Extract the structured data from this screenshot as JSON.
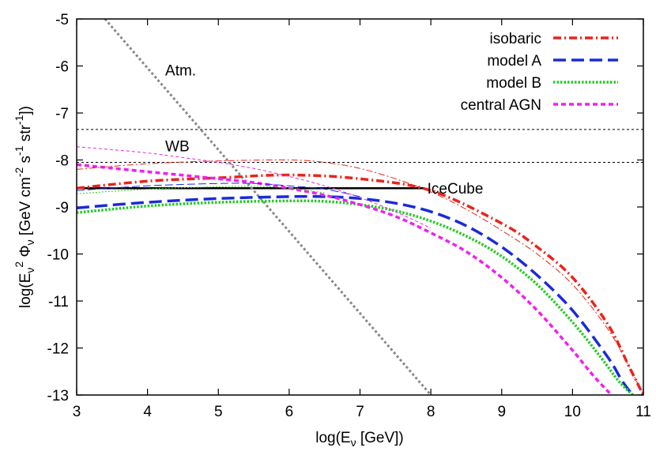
{
  "chart_data": {
    "type": "line",
    "title": "",
    "xlabel": "log(E",
    "xlabel_sub": "ν",
    "xlabel_tail": " [GeV])",
    "ylabel_parts": {
      "a": "log(E",
      "sub1": "ν",
      "sup1": "2",
      "b": " Φ",
      "sub2": "ν",
      "c": " [GeV cm",
      "sup2": "-2",
      "d": " s",
      "sup3": "-1",
      "e": " str",
      "sup4": "-1",
      "f": "])"
    },
    "xlim": [
      3,
      11
    ],
    "ylim": [
      -13,
      -5
    ],
    "xticks": [
      "3",
      "4",
      "5",
      "6",
      "7",
      "8",
      "9",
      "10",
      "11"
    ],
    "yticks": [
      "-5",
      "-6",
      "-7",
      "-8",
      "-9",
      "-10",
      "-11",
      "-12",
      "-13"
    ],
    "legend_position": "top-right",
    "legend": [
      {
        "name": "isobaric",
        "color": "#e8241c",
        "style": "dash-dot"
      },
      {
        "name": "model A",
        "color": "#1a2bd8",
        "style": "long-dash"
      },
      {
        "name": "model B",
        "color": "#22cc22",
        "style": "dotted"
      },
      {
        "name": "central AGN",
        "color": "#ee22ee",
        "style": "short-dash"
      }
    ],
    "series": [
      {
        "name": "isobaric",
        "color": "#e8241c",
        "width": 3.5,
        "x": [
          3,
          4,
          5,
          6,
          7,
          8,
          9,
          9.5,
          10,
          10.5,
          10.8,
          11
        ],
        "y": [
          -8.6,
          -8.45,
          -8.38,
          -8.32,
          -8.4,
          -8.65,
          -9.35,
          -9.85,
          -10.5,
          -11.5,
          -12.4,
          -13
        ]
      },
      {
        "name": "model A",
        "color": "#1a2bd8",
        "width": 3.5,
        "x": [
          3,
          4,
          5,
          6,
          6.5,
          7,
          7.5,
          8,
          8.5,
          9,
          9.5,
          10,
          10.5,
          10.7,
          10.85
        ],
        "y": [
          -9.02,
          -8.9,
          -8.82,
          -8.78,
          -8.78,
          -8.82,
          -8.92,
          -9.1,
          -9.4,
          -9.85,
          -10.45,
          -11.2,
          -12.2,
          -12.7,
          -13
        ]
      },
      {
        "name": "model B",
        "color": "#22cc22",
        "width": 3.5,
        "x": [
          3,
          4,
          5,
          6,
          6.5,
          7,
          7.5,
          8,
          8.5,
          9,
          9.5,
          10,
          10.4,
          10.65,
          10.85
        ],
        "y": [
          -9.12,
          -8.98,
          -8.9,
          -8.87,
          -8.88,
          -8.95,
          -9.08,
          -9.3,
          -9.62,
          -10.05,
          -10.65,
          -11.45,
          -12.2,
          -12.7,
          -13
        ]
      },
      {
        "name": "central AGN",
        "color": "#ee22ee",
        "width": 3.5,
        "x": [
          3,
          4,
          5,
          5.5,
          6,
          6.5,
          7,
          7.5,
          8,
          8.5,
          9,
          9.5,
          10,
          10.3,
          10.55
        ],
        "y": [
          -8.1,
          -8.25,
          -8.4,
          -8.48,
          -8.6,
          -8.75,
          -8.95,
          -9.2,
          -9.55,
          -9.95,
          -10.5,
          -11.2,
          -12.05,
          -12.6,
          -13
        ]
      },
      {
        "name": "isobaric (thin)",
        "color": "#e8241c",
        "width": 1,
        "x": [
          3,
          4,
          5,
          6,
          6.5,
          7,
          7.5,
          8,
          8.5,
          9,
          9.5,
          10,
          10.5,
          10.8,
          11
        ],
        "y": [
          -8.2,
          -8.08,
          -8.02,
          -8.0,
          -8.05,
          -8.18,
          -8.4,
          -8.68,
          -9.05,
          -9.5,
          -10.0,
          -10.65,
          -11.6,
          -12.4,
          -13
        ]
      },
      {
        "name": "model A (thin)",
        "color": "#1a2bd8",
        "width": 1,
        "x": [
          3,
          4,
          5,
          5.5,
          6,
          6.5,
          7
        ],
        "y": [
          -8.65,
          -8.55,
          -8.5,
          -8.5,
          -8.55,
          -8.62,
          -8.78
        ]
      },
      {
        "name": "model B (thin)",
        "color": "#22cc22",
        "width": 1,
        "x": [
          3,
          4,
          5,
          5.5,
          6,
          6.5
        ],
        "y": [
          -8.72,
          -8.62,
          -8.57,
          -8.56,
          -8.6,
          -8.7
        ]
      },
      {
        "name": "central AGN (thin)",
        "color": "#ee22ee",
        "width": 1,
        "x": [
          3,
          3.5,
          4,
          4.5,
          5,
          5.5,
          6,
          6.5,
          7,
          7.5,
          8
        ],
        "y": [
          -7.72,
          -7.78,
          -7.85,
          -7.95,
          -8.05,
          -8.18,
          -8.35,
          -8.55,
          -8.8,
          -9.1,
          -9.45
        ]
      }
    ],
    "reference_lines": [
      {
        "name": "WB upper",
        "y": -7.35,
        "x": [
          3,
          11
        ],
        "color": "#000000",
        "style": "dashed"
      },
      {
        "name": "WB lower",
        "y": -8.05,
        "x": [
          3,
          11
        ],
        "color": "#000000",
        "style": "dashed"
      },
      {
        "name": "IceCube",
        "y": -8.6,
        "x": [
          3,
          7.9
        ],
        "color": "#000000",
        "style": "solid"
      },
      {
        "name": "Atm.",
        "x": [
          3.4,
          8.0
        ],
        "y": [
          -5,
          -13
        ],
        "color": "#888888",
        "style": "dotted"
      }
    ],
    "annotations": [
      {
        "text": "Atm.",
        "x": 4.25,
        "y": -6.08
      },
      {
        "text": "WB",
        "x": 4.25,
        "y": -7.7
      },
      {
        "text": "IceCube",
        "x": 7.95,
        "y": -8.6
      }
    ]
  }
}
